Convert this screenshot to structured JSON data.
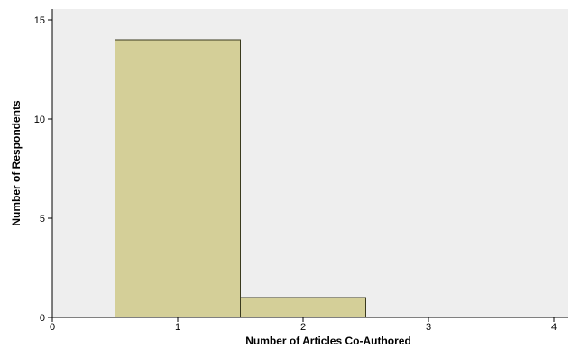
{
  "chart_data": {
    "type": "bar",
    "title": "",
    "xlabel": "Number of Articles Co-Authored",
    "ylabel": "Number of Respondents",
    "x_ticks": [
      0,
      1,
      2,
      3,
      4
    ],
    "y_ticks": [
      0,
      5,
      10,
      15
    ],
    "xlim": [
      0,
      4
    ],
    "ylim": [
      0,
      15
    ],
    "bins": [
      {
        "center": 1,
        "value": 14
      },
      {
        "center": 2,
        "value": 1
      }
    ],
    "bin_width": 1,
    "grid": false,
    "colors": {
      "bar_fill": "#d4cf98",
      "bar_stroke": "#3a3a1e",
      "plot_bg": "#eeeeee"
    }
  }
}
